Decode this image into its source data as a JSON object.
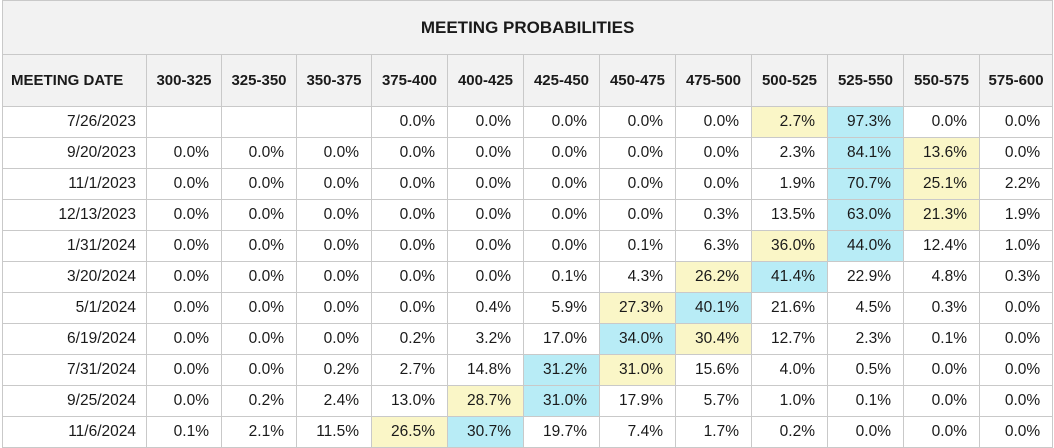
{
  "title": "MEETING PROBABILITIES",
  "columns": [
    "MEETING DATE",
    "300-325",
    "325-350",
    "350-375",
    "375-400",
    "400-425",
    "425-450",
    "450-475",
    "475-500",
    "500-525",
    "525-550",
    "550-575",
    "575-600"
  ],
  "highlight_colors": {
    "max": "#b8ecf6",
    "other": "#faf6c7"
  },
  "rows": [
    {
      "date": "7/26/2023",
      "values": [
        "",
        "",
        "",
        "0.0%",
        "0.0%",
        "0.0%",
        "0.0%",
        "0.0%",
        "2.7%",
        "97.3%",
        "0.0%",
        "0.0%"
      ]
    },
    {
      "date": "9/20/2023",
      "values": [
        "0.0%",
        "0.0%",
        "0.0%",
        "0.0%",
        "0.0%",
        "0.0%",
        "0.0%",
        "0.0%",
        "2.3%",
        "84.1%",
        "13.6%",
        "0.0%"
      ]
    },
    {
      "date": "11/1/2023",
      "values": [
        "0.0%",
        "0.0%",
        "0.0%",
        "0.0%",
        "0.0%",
        "0.0%",
        "0.0%",
        "0.0%",
        "1.9%",
        "70.7%",
        "25.1%",
        "2.2%"
      ]
    },
    {
      "date": "12/13/2023",
      "values": [
        "0.0%",
        "0.0%",
        "0.0%",
        "0.0%",
        "0.0%",
        "0.0%",
        "0.0%",
        "0.3%",
        "13.5%",
        "63.0%",
        "21.3%",
        "1.9%"
      ]
    },
    {
      "date": "1/31/2024",
      "values": [
        "0.0%",
        "0.0%",
        "0.0%",
        "0.0%",
        "0.0%",
        "0.0%",
        "0.1%",
        "6.3%",
        "36.0%",
        "44.0%",
        "12.4%",
        "1.0%"
      ]
    },
    {
      "date": "3/20/2024",
      "values": [
        "0.0%",
        "0.0%",
        "0.0%",
        "0.0%",
        "0.0%",
        "0.1%",
        "4.3%",
        "26.2%",
        "41.4%",
        "22.9%",
        "4.8%",
        "0.3%"
      ]
    },
    {
      "date": "5/1/2024",
      "values": [
        "0.0%",
        "0.0%",
        "0.0%",
        "0.0%",
        "0.4%",
        "5.9%",
        "27.3%",
        "40.1%",
        "21.6%",
        "4.5%",
        "0.3%",
        "0.0%"
      ]
    },
    {
      "date": "6/19/2024",
      "values": [
        "0.0%",
        "0.0%",
        "0.0%",
        "0.2%",
        "3.2%",
        "17.0%",
        "34.0%",
        "30.4%",
        "12.7%",
        "2.3%",
        "0.1%",
        "0.0%"
      ]
    },
    {
      "date": "7/31/2024",
      "values": [
        "0.0%",
        "0.0%",
        "0.2%",
        "2.7%",
        "14.8%",
        "31.2%",
        "31.0%",
        "15.6%",
        "4.0%",
        "0.5%",
        "0.0%",
        "0.0%"
      ]
    },
    {
      "date": "9/25/2024",
      "values": [
        "0.0%",
        "0.2%",
        "2.4%",
        "13.0%",
        "28.7%",
        "31.0%",
        "17.9%",
        "5.7%",
        "1.0%",
        "0.1%",
        "0.0%",
        "0.0%"
      ]
    },
    {
      "date": "11/6/2024",
      "values": [
        "0.1%",
        "2.1%",
        "11.5%",
        "26.5%",
        "30.7%",
        "19.7%",
        "7.4%",
        "1.7%",
        "0.2%",
        "0.0%",
        "0.0%",
        "0.0%"
      ]
    }
  ]
}
